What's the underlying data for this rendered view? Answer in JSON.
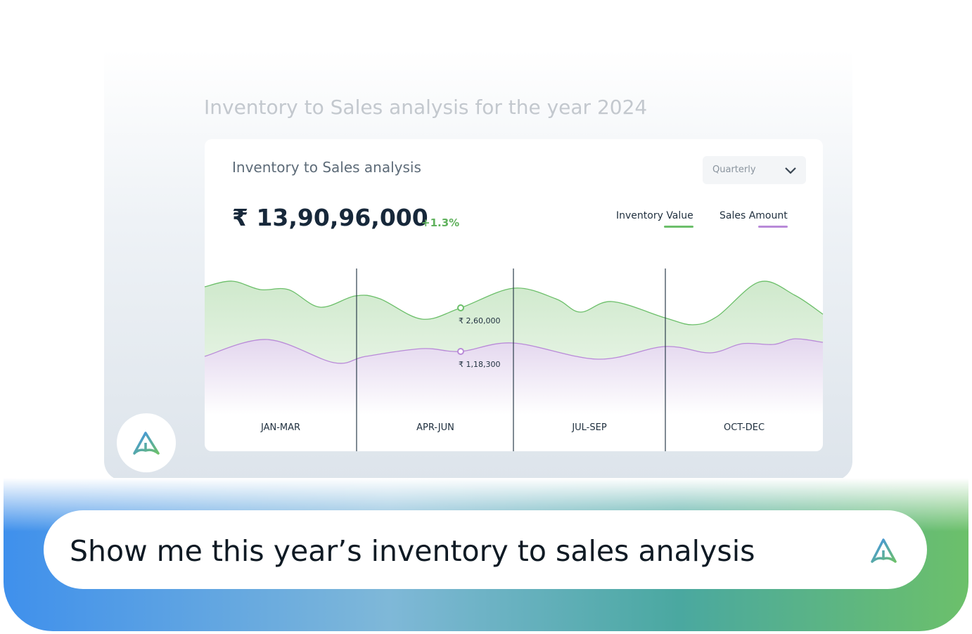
{
  "page_title": "Inventory to Sales analysis for the year 2024",
  "card": {
    "title": "Inventory to Sales analysis",
    "dropdown": "Quarterly",
    "total": "₹ 13,90,96,000",
    "change": "+1.3%",
    "legend": [
      {
        "name": "Inventory Value",
        "color": "#6cbf6a"
      },
      {
        "name": "Sales Amount",
        "color": "#b98ad8"
      }
    ],
    "quarters": [
      "JAN-MAR",
      "APR-JUN",
      "JUL-SEP",
      "OCT-DEC"
    ],
    "annotations": [
      {
        "value": 260000,
        "label": "₹ 2,60,000"
      },
      {
        "value": 118300,
        "label": "₹ 1,18,300"
      }
    ]
  },
  "prompt": "Show me this year’s inventory to sales analysis"
}
